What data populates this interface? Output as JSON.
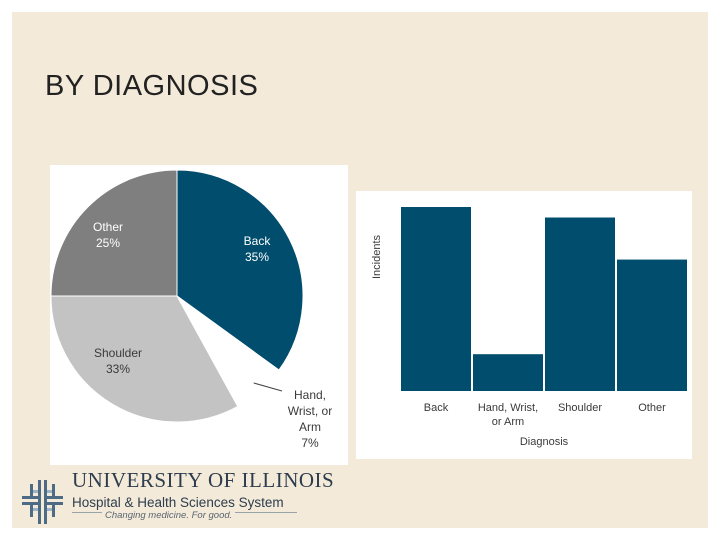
{
  "slide": {
    "title": "BY DIAGNOSIS"
  },
  "chart_data": [
    {
      "type": "pie",
      "slices": [
        {
          "label": "Back",
          "value": 35,
          "value_label": "35%",
          "color": "#004d6e"
        },
        {
          "label": "Hand, Wrist, or Arm",
          "label_lines": [
            "Hand,",
            "Wrist, or",
            "Arm"
          ],
          "value": 7,
          "value_label": "7%",
          "color": "#ffffff"
        },
        {
          "label": "Shoulder",
          "value": 33,
          "value_label": "33%",
          "color": "#c3c3c3"
        },
        {
          "label": "Other",
          "value": 25,
          "value_label": "25%",
          "color": "#7f7f7f"
        }
      ]
    },
    {
      "type": "bar",
      "categories": [
        "Back",
        "Hand, Wrist, or Arm",
        "Shoulder",
        "Other"
      ],
      "category_lines": [
        [
          "Back"
        ],
        [
          "Hand, Wrist,",
          "or Arm"
        ],
        [
          "Shoulder"
        ],
        [
          "Other"
        ]
      ],
      "values": [
        35,
        7,
        33,
        25
      ],
      "xlabel": "Diagnosis",
      "ylabel": "Incidents",
      "ylim": [
        0,
        35
      ],
      "bar_color": "#004d6e",
      "grid": false,
      "y_tick_labels": false
    }
  ],
  "logo": {
    "line1": "UNIVERSITY OF ILLINOIS",
    "line2": "Hospital & Health Sciences System",
    "tagline": "Changing medicine. For good.",
    "color": "#2d3d4d",
    "icon": "university-cross-icon"
  }
}
